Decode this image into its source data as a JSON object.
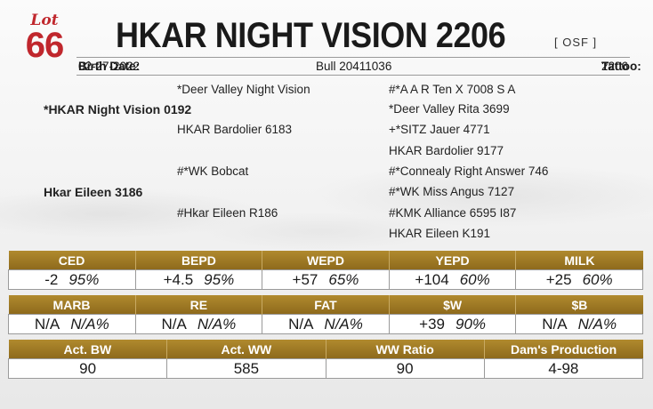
{
  "lot": {
    "word": "Lot",
    "number": "66"
  },
  "title": "HKAR NIGHT VISION 2206",
  "tag": "[ OSF ]",
  "info": {
    "birth_label": "Birth Date:",
    "birth_value": "02-27-2022",
    "registration": "Bull 20411036",
    "tattoo_label": "Tattoo:",
    "tattoo_value": "2206"
  },
  "pedigree": {
    "sire": "*HKAR Night Vision 0192",
    "sire_sire": "*Deer Valley Night Vision",
    "sire_sire_sire": "#*A A R Ten X 7008 S A",
    "sire_sire_dam": "*Deer Valley Rita 3699",
    "sire_dam": "HKAR Bardolier 6183",
    "sire_dam_sire": "+*SITZ Jauer 4771",
    "sire_dam_dam": "HKAR Bardolier 9177",
    "dam": "Hkar Eileen 3186",
    "dam_sire": "#*WK Bobcat",
    "dam_sire_sire": "#*Connealy Right Answer 746",
    "dam_sire_dam": "#*WK Miss Angus 7127",
    "dam_dam": "#Hkar Eileen R186",
    "dam_dam_sire": "#KMK Alliance 6595 I87",
    "dam_dam_dam": "HKAR Eileen K191"
  },
  "epd_row1": [
    {
      "label": "CED",
      "value": "-2",
      "acc": "95%"
    },
    {
      "label": "BEPD",
      "value": "+4.5",
      "acc": "95%"
    },
    {
      "label": "WEPD",
      "value": "+57",
      "acc": "65%"
    },
    {
      "label": "YEPD",
      "value": "+104",
      "acc": "60%"
    },
    {
      "label": "MILK",
      "value": "+25",
      "acc": "60%"
    }
  ],
  "epd_row2": [
    {
      "label": "MARB",
      "value": "N/A",
      "acc": "N/A%"
    },
    {
      "label": "RE",
      "value": "N/A",
      "acc": "N/A%"
    },
    {
      "label": "FAT",
      "value": "N/A",
      "acc": "N/A%"
    },
    {
      "label": "$W",
      "value": "+39",
      "acc": "90%"
    },
    {
      "label": "$B",
      "value": "N/A",
      "acc": "N/A%"
    }
  ],
  "actuals": [
    {
      "label": "Act. BW",
      "value": "90"
    },
    {
      "label": "Act. WW",
      "value": "585"
    },
    {
      "label": "WW Ratio",
      "value": "90"
    },
    {
      "label": "Dam's Production",
      "value": "4-98"
    }
  ]
}
